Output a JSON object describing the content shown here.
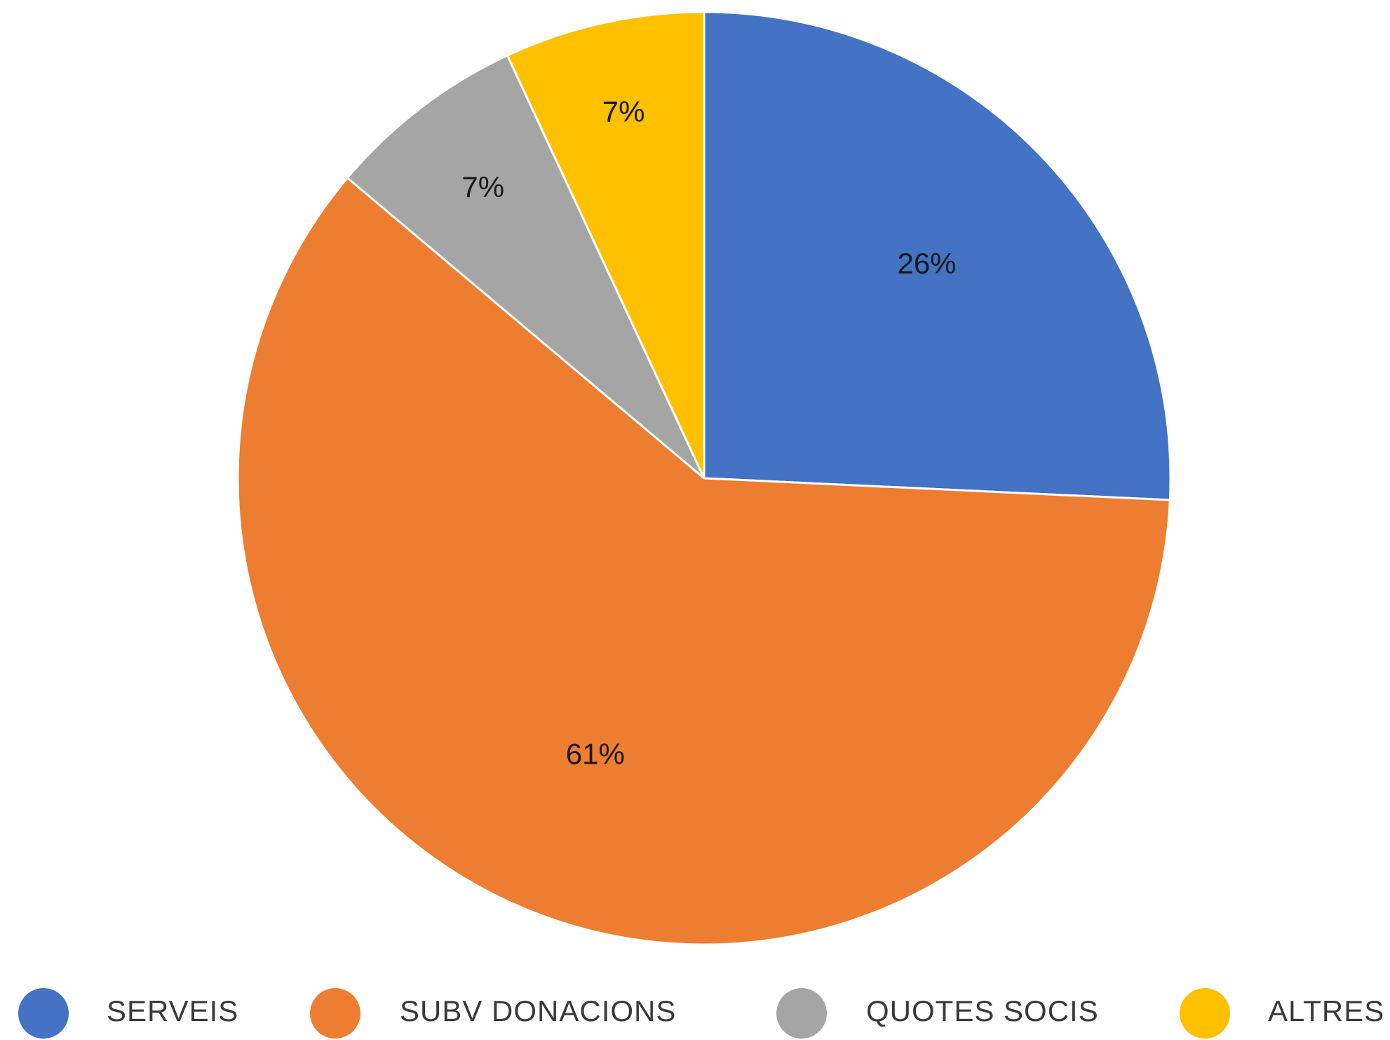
{
  "chart_data": {
    "type": "pie",
    "title": "",
    "categories": [
      "SERVEIS",
      "SUBV DONACIONS",
      "QUOTES SOCIS",
      "ALTRES"
    ],
    "values": [
      26,
      61,
      7,
      7
    ],
    "labels": [
      "26%",
      "61%",
      "7%",
      "7%"
    ],
    "colors": [
      "#4472C4",
      "#ED7D31",
      "#A5A5A5",
      "#FFC000"
    ],
    "start_angle": "12 o'clock",
    "direction": "clockwise",
    "legend": "bottom"
  }
}
